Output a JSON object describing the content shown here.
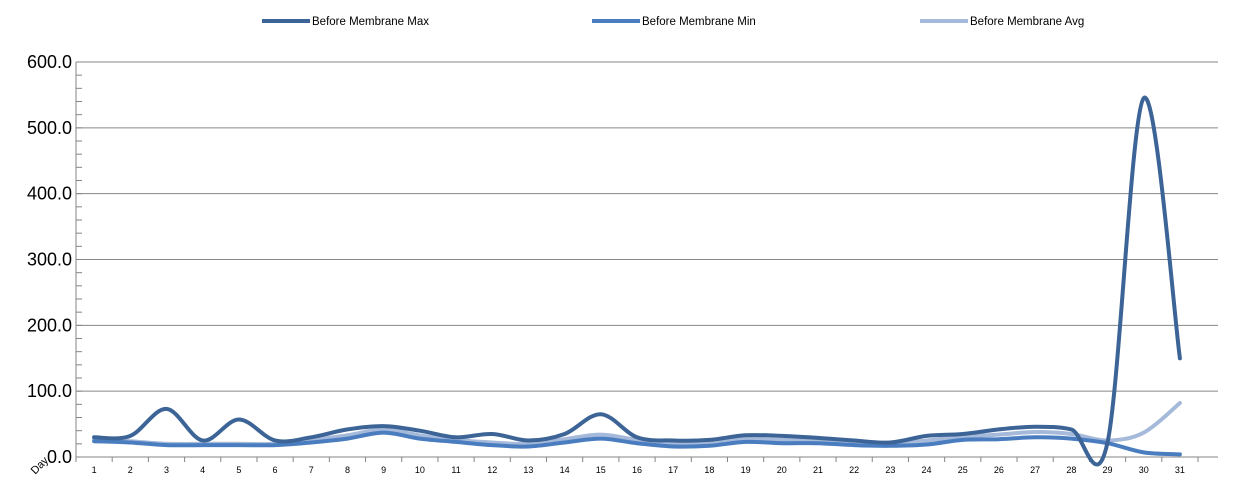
{
  "chart_data": {
    "type": "line",
    "title": "",
    "xlabel": "Day",
    "ylabel": "",
    "categories": [
      "1",
      "2",
      "3",
      "4",
      "5",
      "6",
      "7",
      "8",
      "9",
      "10",
      "11",
      "12",
      "13",
      "14",
      "15",
      "16",
      "17",
      "18",
      "19",
      "20",
      "21",
      "22",
      "23",
      "24",
      "25",
      "26",
      "27",
      "28",
      "29",
      "30",
      "31"
    ],
    "ylim": [
      0,
      600
    ],
    "y_ticks": [
      "0.0",
      "100.0",
      "200.0",
      "300.0",
      "400.0",
      "500.0",
      "600.0"
    ],
    "grid": "horizontal",
    "legend_position": "top",
    "series": [
      {
        "name": "Before Membrane Max",
        "color": "#3c6496",
        "values": [
          30,
          32,
          73,
          25,
          57,
          25,
          30,
          42,
          47,
          40,
          30,
          35,
          25,
          35,
          65,
          30,
          25,
          26,
          33,
          32,
          29,
          25,
          22,
          32,
          35,
          42,
          46,
          42,
          22,
          545,
          150
        ]
      },
      {
        "name": "Before Membrane Min",
        "color": "#4a7dbf",
        "values": [
          24,
          22,
          18,
          18,
          18,
          18,
          22,
          28,
          37,
          28,
          23,
          18,
          16,
          22,
          28,
          21,
          16,
          17,
          23,
          21,
          21,
          18,
          17,
          19,
          26,
          27,
          30,
          28,
          21,
          7,
          4
        ]
      },
      {
        "name": "Before Membrane Avg",
        "color": "#a5b9da",
        "values": [
          27,
          24,
          20,
          20,
          20,
          20,
          26,
          33,
          42,
          33,
          26,
          22,
          20,
          27,
          34,
          26,
          21,
          21,
          28,
          26,
          25,
          22,
          20,
          25,
          31,
          34,
          38,
          35,
          25,
          37,
          82
        ]
      }
    ]
  }
}
